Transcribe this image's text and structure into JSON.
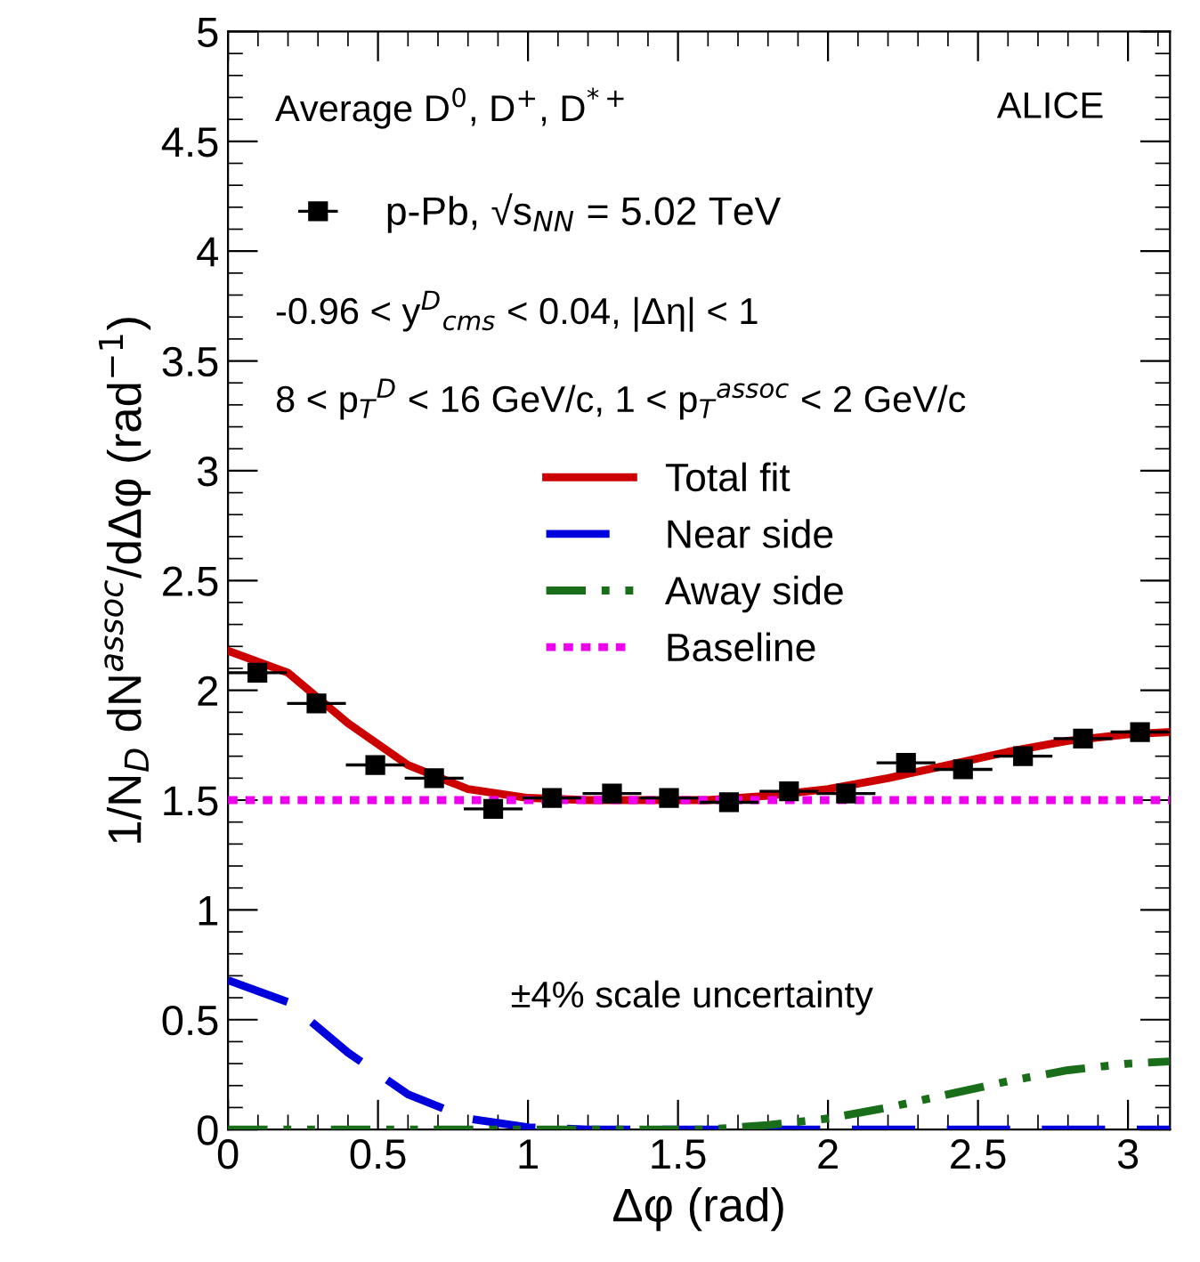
{
  "chart_data": {
    "type": "line",
    "xlabel": "Δφ (rad)",
    "ylabel": "1/N$_{D}$ dN$^{assoc}$/dΔφ (rad$^{−1}$)",
    "xlim": [
      0,
      3.14
    ],
    "ylim": [
      0,
      5
    ],
    "xticks": [
      0,
      0.5,
      1,
      1.5,
      2,
      2.5,
      3
    ],
    "yticks": [
      0,
      0.5,
      1,
      1.5,
      2,
      2.5,
      3,
      3.5,
      4,
      4.5,
      5
    ],
    "grid": false,
    "legend": "top",
    "annotations": [
      "Average D$^{0}$, D$^{+}$, D$^{*+}$",
      "ALICE",
      "-0.96 < y$^{D}$$_{cms}$ < 0.04, |Δη| < 1",
      "8 < p$_{T}$$^{D}$ < 16 GeV/c, 1 < p$_{T}$$^{assoc}$ < 2 GeV/c",
      "±4% scale uncertainty"
    ],
    "series": [
      {
        "name": "p-Pb, √s$_{NN}$ = 5.02 TeV",
        "type": "scatter",
        "color": "#000000",
        "marker": "square",
        "x": [
          0.098,
          0.295,
          0.491,
          0.687,
          0.884,
          1.08,
          1.28,
          1.47,
          1.67,
          1.87,
          2.06,
          2.26,
          2.45,
          2.65,
          2.85,
          3.04
        ],
        "values": [
          2.08,
          1.94,
          1.66,
          1.6,
          1.46,
          1.51,
          1.53,
          1.51,
          1.49,
          1.54,
          1.53,
          1.67,
          1.64,
          1.7,
          1.78,
          1.81
        ],
        "xerrors": [
          0.098,
          0.098,
          0.098,
          0.098,
          0.098,
          0.098,
          0.098,
          0.098,
          0.098,
          0.098,
          0.098,
          0.098,
          0.098,
          0.098,
          0.098,
          0.098
        ]
      },
      {
        "name": "Total fit",
        "color": "#cc0000",
        "line_style": "solid",
        "x": [
          0,
          0.2,
          0.4,
          0.6,
          0.8,
          1.0,
          1.2,
          1.4,
          1.6,
          1.8,
          2.0,
          2.2,
          2.4,
          2.6,
          2.8,
          3.0,
          3.14
        ],
        "values": [
          2.18,
          2.08,
          1.85,
          1.66,
          1.55,
          1.51,
          1.5,
          1.5,
          1.5,
          1.52,
          1.55,
          1.6,
          1.66,
          1.72,
          1.77,
          1.8,
          1.81
        ]
      },
      {
        "name": "Near side",
        "color": "#0000dd",
        "line_style": "dashed",
        "x": [
          0,
          0.2,
          0.4,
          0.6,
          0.8,
          1.0,
          1.2,
          3.14
        ],
        "values": [
          0.68,
          0.58,
          0.35,
          0.16,
          0.05,
          0.01,
          0,
          0
        ]
      },
      {
        "name": "Away side",
        "color": "#1a6e1a",
        "line_style": "dashdot",
        "x": [
          0,
          1.6,
          1.8,
          2.0,
          2.2,
          2.4,
          2.6,
          2.8,
          3.0,
          3.14
        ],
        "values": [
          0,
          0,
          0.02,
          0.05,
          0.1,
          0.16,
          0.22,
          0.27,
          0.3,
          0.31
        ]
      },
      {
        "name": "Baseline",
        "color": "#ee00ee",
        "line_style": "dotted",
        "x": [
          0,
          3.14
        ],
        "values": [
          1.5,
          1.5
        ]
      }
    ]
  }
}
